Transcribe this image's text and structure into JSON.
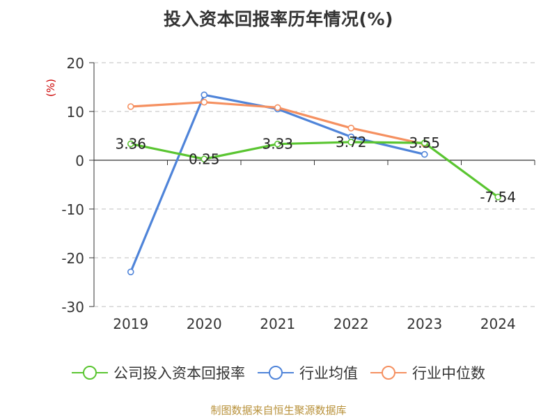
{
  "chart_data": {
    "type": "line",
    "title": "投入资本回报率历年情况(%)",
    "ylabel": "(%)",
    "categories": [
      "2019",
      "2020",
      "2021",
      "2022",
      "2023",
      "2024"
    ],
    "ylim": [
      -30,
      20
    ],
    "yticks": [
      20,
      10,
      0,
      -10,
      -20,
      -30
    ],
    "grid": true,
    "legend_position": "bottom",
    "series": [
      {
        "name": "公司投入资本回报率",
        "color": "#5ac531",
        "values": [
          3.36,
          0.25,
          3.33,
          3.72,
          3.55,
          -7.54
        ],
        "labels": [
          "3.36",
          "0.25",
          "3.33",
          "3.72",
          "3.55",
          "-7.54"
        ]
      },
      {
        "name": "行业均值",
        "color": "#4f84d9",
        "values": [
          -22.9,
          13.4,
          10.5,
          4.8,
          1.2,
          null
        ]
      },
      {
        "name": "行业中位数",
        "color": "#f59060",
        "values": [
          11.0,
          11.9,
          10.8,
          6.6,
          3.3,
          null
        ]
      }
    ]
  },
  "source": "制图数据来自恒生聚源数据库"
}
